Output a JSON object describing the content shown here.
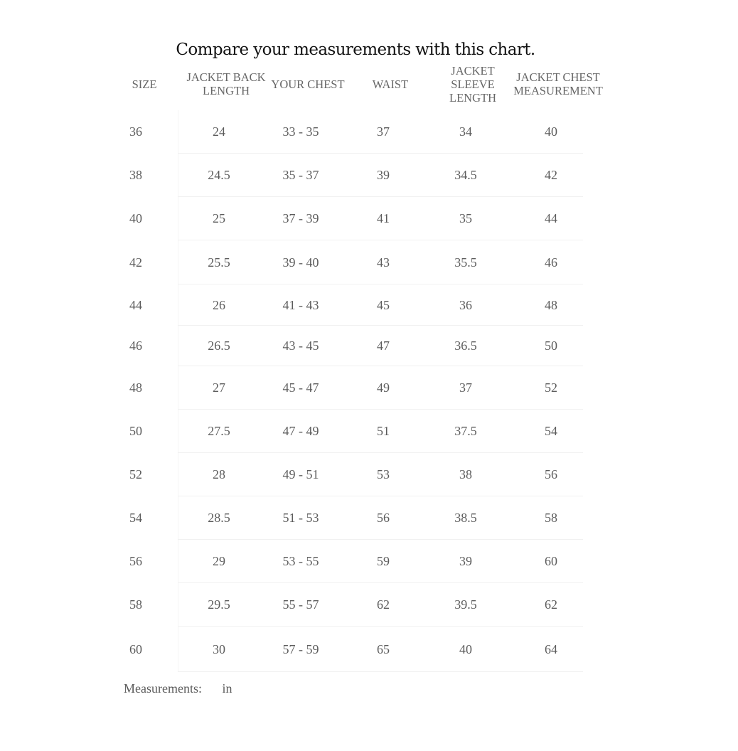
{
  "title": "Compare your measurements with this chart.",
  "columns": [
    "SIZE",
    "JACKET BACK LENGTH",
    "YOUR CHEST",
    "WAIST",
    "JACKET SLEEVE LENGTH",
    "JACKET CHEST MEASUREMENT"
  ],
  "rows": [
    [
      "36",
      "24",
      "33 - 35",
      "37",
      "34",
      "40"
    ],
    [
      "38",
      "24.5",
      "35 - 37",
      "39",
      "34.5",
      "42"
    ],
    [
      "40",
      "25",
      "37 - 39",
      "41",
      "35",
      "44"
    ],
    [
      "42",
      "25.5",
      "39 - 40",
      "43",
      "35.5",
      "46"
    ],
    [
      "44",
      "26",
      "41 - 43",
      "45",
      "36",
      "48"
    ],
    [
      "46",
      "26.5",
      "43 - 45",
      "47",
      "36.5",
      "50"
    ],
    [
      "48",
      "27",
      "45 - 47",
      "49",
      "37",
      "52"
    ],
    [
      "50",
      "27.5",
      "47 - 49",
      "51",
      "37.5",
      "54"
    ],
    [
      "52",
      "28",
      "49 - 51",
      "53",
      "38",
      "56"
    ],
    [
      "54",
      "28.5",
      "51 - 53",
      "56",
      "38.5",
      "58"
    ],
    [
      "56",
      "29",
      "53 - 55",
      "59",
      "39",
      "60"
    ],
    [
      "58",
      "29.5",
      "55 - 57",
      "62",
      "39.5",
      "62"
    ],
    [
      "60",
      "30",
      "57 - 59",
      "65",
      "40",
      "64"
    ]
  ],
  "footer": {
    "label": "Measurements:",
    "unit": "in"
  }
}
